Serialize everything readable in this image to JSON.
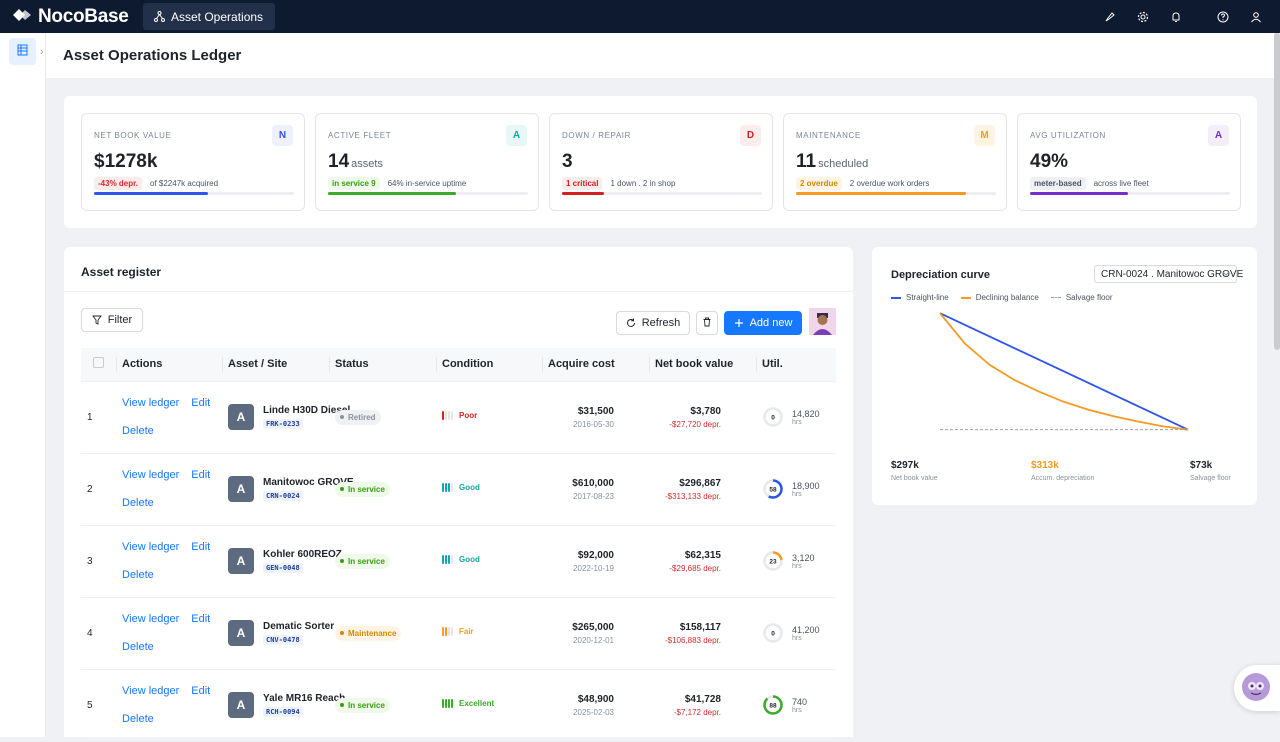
{
  "app": {
    "logo_text": "NocoBase",
    "active_tab": "Asset Operations",
    "page_title": "Asset Operations Ledger",
    "top_icons": [
      "brush-icon",
      "gear-icon",
      "bell-icon",
      "help-icon",
      "user-icon"
    ]
  },
  "kpis": [
    {
      "label": "NET BOOK VALUE",
      "badge": "N",
      "value": "$1278k",
      "unit": "",
      "tag": "-43% depr.",
      "sub": "of $2247k acquired",
      "progress": 0.57,
      "color": "#2f54eb",
      "tag_bg": "#fdecec",
      "tag_color": "#d92b2b",
      "badge_bg": "#eef1fd",
      "badge_color": "#2f54eb"
    },
    {
      "label": "ACTIVE FLEET",
      "badge": "A",
      "value": "14",
      "unit": "assets",
      "tag": "in service 9",
      "sub": "64% in-service uptime",
      "progress": 0.64,
      "color": "#3bab2b",
      "tag_bg": "#eef9ea",
      "tag_color": "#389e0d",
      "badge_bg": "#e6f8f6",
      "badge_color": "#13a8a8"
    },
    {
      "label": "DOWN / REPAIR",
      "badge": "D",
      "value": "3",
      "unit": "",
      "tag": "1 critical",
      "sub": "1 down . 2 in shop",
      "progress": 0.21,
      "color": "#d4201f",
      "tag_bg": "#fdecec",
      "tag_color": "#d4201f",
      "badge_bg": "#fdecec",
      "badge_color": "#d4201f"
    },
    {
      "label": "MAINTENANCE",
      "badge": "M",
      "value": "11",
      "unit": "scheduled",
      "tag": "2 overdue",
      "sub": "2 overdue work orders",
      "progress": 0.85,
      "color": "#f59a23",
      "tag_bg": "#fff4e3",
      "tag_color": "#d48806",
      "badge_bg": "#fff4e3",
      "badge_color": "#f59a23"
    },
    {
      "label": "AVG UTILIZATION",
      "badge": "A",
      "value": "49%",
      "unit": "",
      "tag": "meter-based",
      "sub": "across live fleet",
      "progress": 0.49,
      "color": "#722ed1",
      "tag_bg": "#eff0f3",
      "tag_color": "#4b5462",
      "badge_bg": "#f4eefc",
      "badge_color": "#722ed1"
    }
  ],
  "register": {
    "title": "Asset register",
    "filter_label": "Filter",
    "refresh_label": "Refresh",
    "add_label": "Add new",
    "columns": [
      "Actions",
      "Asset / Site",
      "Status",
      "Condition",
      "Acquire cost",
      "Net book value",
      "Util."
    ],
    "action_labels": {
      "view": "View ledger",
      "edit": "Edit",
      "delete": "Delete"
    },
    "rows": [
      {
        "index": "1",
        "avatar": "A",
        "name": "Linde H30D Diesel",
        "code": "FRK-0233",
        "status": "Retired",
        "status_color": "#8a929c",
        "status_bg": "#f0f1f3",
        "condition": "Poor",
        "cond_level": 1,
        "cond_color": "#d4201f",
        "cost": "$31,500",
        "date": "2016-05-30",
        "nbv": "$3,780",
        "depr": "-$27,720 depr.",
        "util": 0,
        "util_color": "#c9cdd3",
        "hours": "14,820",
        "hrs": "hrs"
      },
      {
        "index": "2",
        "avatar": "A",
        "name": "Manitowoc GROVE",
        "code": "CRN-0024",
        "status": "In service",
        "status_color": "#389e0d",
        "status_bg": "#eef9ea",
        "condition": "Good",
        "cond_level": 3,
        "cond_color": "#13a8a8",
        "cost": "$610,000",
        "date": "2017-08-23",
        "nbv": "$296,867",
        "depr": "-$313,133 depr.",
        "util": 58,
        "util_color": "#2f54eb",
        "hours": "18,900",
        "hrs": "hrs"
      },
      {
        "index": "3",
        "avatar": "A",
        "name": "Kohler 600REOZ",
        "code": "GEN-0048",
        "status": "In service",
        "status_color": "#389e0d",
        "status_bg": "#eef9ea",
        "condition": "Good",
        "cond_level": 3,
        "cond_color": "#13a8a8",
        "cost": "$92,000",
        "date": "2022-10-19",
        "nbv": "$62,315",
        "depr": "-$29,685 depr.",
        "util": 23,
        "util_color": "#f59a23",
        "hours": "3,120",
        "hrs": "hrs"
      },
      {
        "index": "4",
        "avatar": "A",
        "name": "Dematic Sorter",
        "code": "CNV-0478",
        "status": "Maintenance",
        "status_color": "#d48806",
        "status_bg": "#fff4e3",
        "condition": "Fair",
        "cond_level": 2,
        "cond_color": "#f59a23",
        "cost": "$265,000",
        "date": "2020-12-01",
        "nbv": "$158,117",
        "depr": "-$106,883 depr.",
        "util": 0,
        "util_color": "#c9cdd3",
        "hours": "41,200",
        "hrs": "hrs"
      },
      {
        "index": "5",
        "avatar": "A",
        "name": "Yale MR16 Reach",
        "code": "RCH-0094",
        "status": "In service",
        "status_color": "#389e0d",
        "status_bg": "#eef9ea",
        "condition": "Excellent",
        "cond_level": 4,
        "cond_color": "#3bab2b",
        "cost": "$48,900",
        "date": "2025-02-03",
        "nbv": "$41,728",
        "depr": "-$7,172 depr.",
        "util": 88,
        "util_color": "#3bab2b",
        "hours": "740",
        "hrs": "hrs"
      }
    ]
  },
  "depreciation": {
    "title": "Depreciation curve",
    "selected_asset": "CRN-0024 . Manitowoc GROVE",
    "stats": [
      {
        "value": "$297k",
        "label": "Net book value",
        "color": "#1f2329"
      },
      {
        "value": "$313k",
        "label": "Accum. depreciation",
        "color": "#f59a23"
      },
      {
        "value": "$73k",
        "label": "Salvage floor",
        "color": "#1f2329"
      }
    ]
  },
  "chart_data": {
    "type": "line",
    "title": "Depreciation curve",
    "x": [
      0,
      1,
      2,
      3,
      4,
      5,
      6,
      7,
      8,
      9,
      10
    ],
    "series": [
      {
        "name": "Straight-line",
        "color": "#2f54eb",
        "values": [
          610,
          556,
          503,
          449,
          395,
          342,
          288,
          234,
          181,
          127,
          73
        ]
      },
      {
        "name": "Declining balance",
        "color": "#f59a23",
        "values": [
          610,
          470,
          372,
          302,
          248,
          201,
          164,
          135,
          110,
          88,
          73
        ]
      },
      {
        "name": "Salvage floor",
        "color": "#9aa0a8",
        "values": [
          73,
          73,
          73,
          73,
          73,
          73,
          73,
          73,
          73,
          73,
          73
        ]
      }
    ],
    "ylim": [
      0,
      700
    ],
    "grid": false,
    "legend": "top-left"
  }
}
